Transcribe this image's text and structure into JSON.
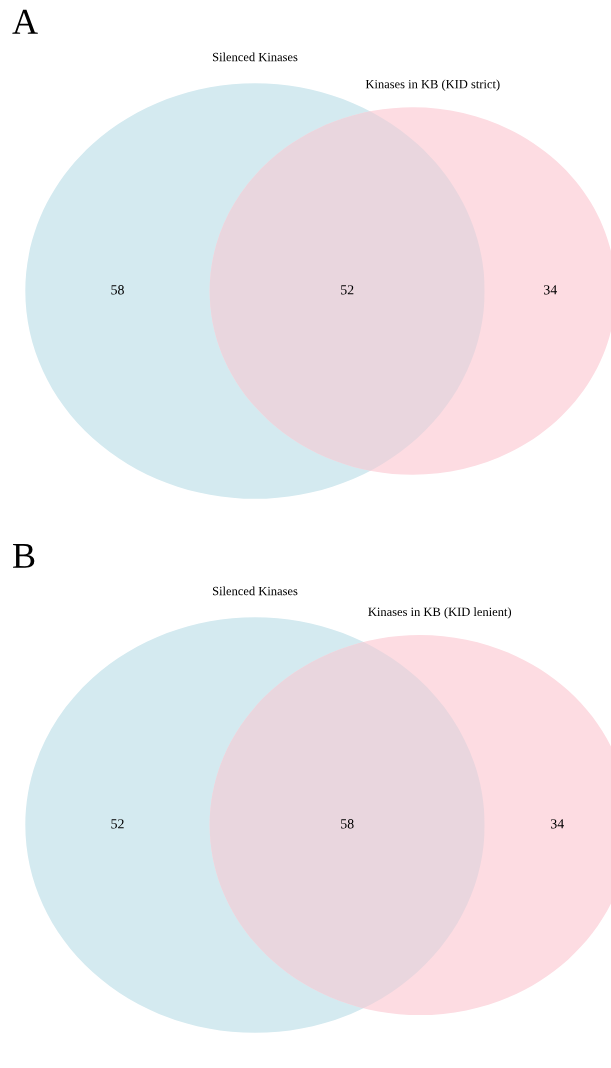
{
  "chart_data": [
    {
      "type": "other",
      "title": "A",
      "categories": [
        null,
        null,
        null
      ],
      "values": [
        58,
        52,
        34
      ],
      "data_labels": true,
      "colors": [
        "#d4eaf0",
        "#e9d6de",
        "#fddce2"
      ],
      "annotations": [
        "Silenced Kinases",
        "Kinases in KB (KID strict)"
      ]
    },
    {
      "type": "other",
      "title": "B",
      "categories": [
        null,
        null,
        null
      ],
      "values": [
        52,
        58,
        34
      ],
      "data_labels": true,
      "colors": [
        "#d4eaf0",
        "#e9d6de",
        "#fddce2"
      ],
      "annotations": [
        "Silenced Kinases",
        "Kinases in KB (KID lenient)"
      ]
    }
  ]
}
